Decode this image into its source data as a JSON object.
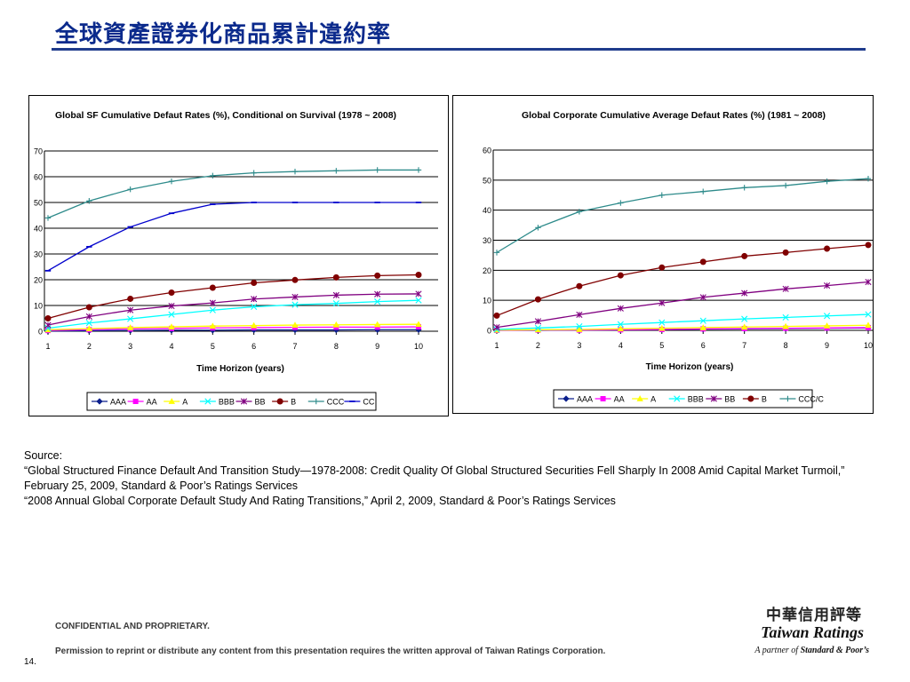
{
  "page": {
    "title": "全球資產證券化商品累計違約率",
    "source_heading": "Source:",
    "source_line1": "“Global Structured Finance Default And Transition Study—1978-2008: Credit Quality Of Global Structured Securities Fell Sharply In 2008 Amid Capital Market Turmoil,” February 25, 2009, Standard & Poor’s Ratings Services",
    "source_line2": "“2008 Annual Global Corporate Default Study And Rating Transitions,” April 2, 2009, Standard & Poor’s Ratings Services",
    "confidential": "CONFIDENTIAL AND PROPRIETARY.",
    "permission": "Permission to reprint or distribute any content from this presentation requires the written approval of Taiwan Ratings Corporation.",
    "page_number": "14.",
    "logo_cjk": "中華信用評等",
    "logo_name": "Taiwan Ratings",
    "logo_partner_prefix": "A partner of",
    "logo_partner_name": "Standard & Poor’s"
  },
  "chart_data": [
    {
      "type": "line",
      "title": "Global SF Cumulative Defaut Rates (%), Conditional on Survival (1978 ~ 2008)",
      "xlabel": "Time Horizon (years)",
      "ylabel": "",
      "x": [
        1,
        2,
        3,
        4,
        5,
        6,
        7,
        8,
        9,
        10
      ],
      "ylim": [
        0,
        70
      ],
      "yticks": [
        0,
        10,
        20,
        30,
        40,
        50,
        60,
        70
      ],
      "grid": true,
      "legend_position": "bottom",
      "series": [
        {
          "name": "AAA",
          "color": "#0b1f8c",
          "marker": "diamond",
          "values": [
            0.1,
            0.2,
            0.3,
            0.4,
            0.4,
            0.5,
            0.5,
            0.5,
            0.6,
            0.6
          ]
        },
        {
          "name": "AA",
          "color": "#ff00ff",
          "marker": "square",
          "values": [
            0.3,
            0.6,
            0.9,
            1.1,
            1.3,
            1.4,
            1.5,
            1.6,
            1.6,
            1.7
          ]
        },
        {
          "name": "A",
          "color": "#ffff00",
          "marker": "triangle",
          "values": [
            0.6,
            1.0,
            1.4,
            1.7,
            2.0,
            2.2,
            2.4,
            2.5,
            2.6,
            2.7
          ]
        },
        {
          "name": "BBB",
          "color": "#00ffff",
          "marker": "x",
          "values": [
            1.2,
            3.2,
            4.8,
            6.5,
            8.2,
            9.5,
            10.3,
            10.8,
            11.5,
            12.0
          ]
        },
        {
          "name": "BB",
          "color": "#800080",
          "marker": "star",
          "values": [
            2.4,
            5.7,
            8.2,
            9.8,
            11.0,
            12.5,
            13.3,
            14.0,
            14.4,
            14.5
          ]
        },
        {
          "name": "B",
          "color": "#800000",
          "marker": "circle",
          "values": [
            5.0,
            9.3,
            12.6,
            15.0,
            16.9,
            18.8,
            19.9,
            20.9,
            21.6,
            21.9
          ]
        },
        {
          "name": "CCC",
          "color": "#2e8b8b",
          "marker": "plus",
          "values": [
            44.0,
            50.6,
            55.1,
            58.2,
            60.4,
            61.5,
            62.0,
            62.3,
            62.6,
            62.6
          ]
        },
        {
          "name": "CC",
          "color": "#0000cc",
          "marker": "dash",
          "values": [
            23.5,
            32.8,
            40.5,
            45.8,
            49.3,
            50.0,
            50.0,
            50.0,
            50.0,
            50.0
          ]
        }
      ]
    },
    {
      "type": "line",
      "title": "Global Corporate Cumulative Average Defaut Rates (%) (1981 ~ 2008)",
      "xlabel": "Time Horizon (years)",
      "ylabel": "",
      "x": [
        1,
        2,
        3,
        4,
        5,
        6,
        7,
        8,
        9,
        10
      ],
      "ylim": [
        0,
        60
      ],
      "yticks": [
        0,
        10,
        20,
        30,
        40,
        50,
        60
      ],
      "grid": true,
      "legend_position": "bottom",
      "series": [
        {
          "name": "AAA",
          "color": "#0b1f8c",
          "marker": "diamond",
          "values": [
            0.0,
            0.0,
            0.1,
            0.2,
            0.3,
            0.4,
            0.5,
            0.6,
            0.7,
            0.8
          ]
        },
        {
          "name": "AA",
          "color": "#ff00ff",
          "marker": "square",
          "values": [
            0.0,
            0.1,
            0.1,
            0.2,
            0.3,
            0.5,
            0.6,
            0.7,
            0.8,
            0.9
          ]
        },
        {
          "name": "A",
          "color": "#ffff00",
          "marker": "triangle",
          "values": [
            0.1,
            0.2,
            0.3,
            0.5,
            0.7,
            0.9,
            1.1,
            1.3,
            1.5,
            1.7
          ]
        },
        {
          "name": "BBB",
          "color": "#00ffff",
          "marker": "x",
          "values": [
            0.3,
            0.8,
            1.3,
            2.0,
            2.6,
            3.2,
            3.8,
            4.3,
            4.8,
            5.3
          ]
        },
        {
          "name": "BB",
          "color": "#800080",
          "marker": "star",
          "values": [
            1.0,
            3.0,
            5.2,
            7.3,
            9.1,
            11.0,
            12.4,
            13.8,
            14.9,
            16.1
          ]
        },
        {
          "name": "B",
          "color": "#800000",
          "marker": "circle",
          "values": [
            4.9,
            10.3,
            14.7,
            18.3,
            20.9,
            22.8,
            24.7,
            25.9,
            27.2,
            28.4
          ]
        },
        {
          "name": "CCC/C",
          "color": "#2e8b8b",
          "marker": "plus",
          "values": [
            25.9,
            34.2,
            39.5,
            42.4,
            45.0,
            46.2,
            47.5,
            48.2,
            49.6,
            50.5
          ]
        }
      ]
    }
  ]
}
